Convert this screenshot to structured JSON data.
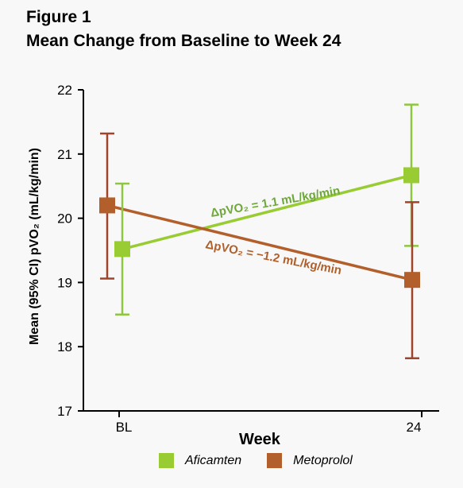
{
  "figure": {
    "label": "Figure 1",
    "title": "Mean Change from Baseline to Week 24"
  },
  "chart_data": {
    "type": "line",
    "xlabel": "Week",
    "ylabel": "Mean (95% CI) pVO₂ (mL/kg/min)",
    "categories": [
      "BL",
      "24"
    ],
    "ylim": [
      17,
      22
    ],
    "yticks": [
      17,
      18,
      19,
      20,
      21,
      22
    ],
    "grid": false,
    "legend_position": "bottom",
    "series": [
      {
        "name": "Aficamten",
        "color": "#99cc33",
        "whisker_color": "#8dc63f",
        "label_color": "#6fa83a",
        "values": [
          19.52,
          20.67
        ],
        "ci_lower": [
          18.5,
          19.57
        ],
        "ci_upper": [
          20.54,
          21.77
        ],
        "annotation": "ΔpVO₂ = 1.1 mL/kg/min"
      },
      {
        "name": "Metoprolol",
        "color": "#b35f2b",
        "whisker_color": "#a0442a",
        "label_color": "#b0602a",
        "values": [
          20.2,
          19.04
        ],
        "ci_lower": [
          19.06,
          17.82
        ],
        "ci_upper": [
          21.32,
          20.25
        ],
        "annotation": "ΔpVO₂ = −1.2 mL/kg/min"
      }
    ]
  }
}
